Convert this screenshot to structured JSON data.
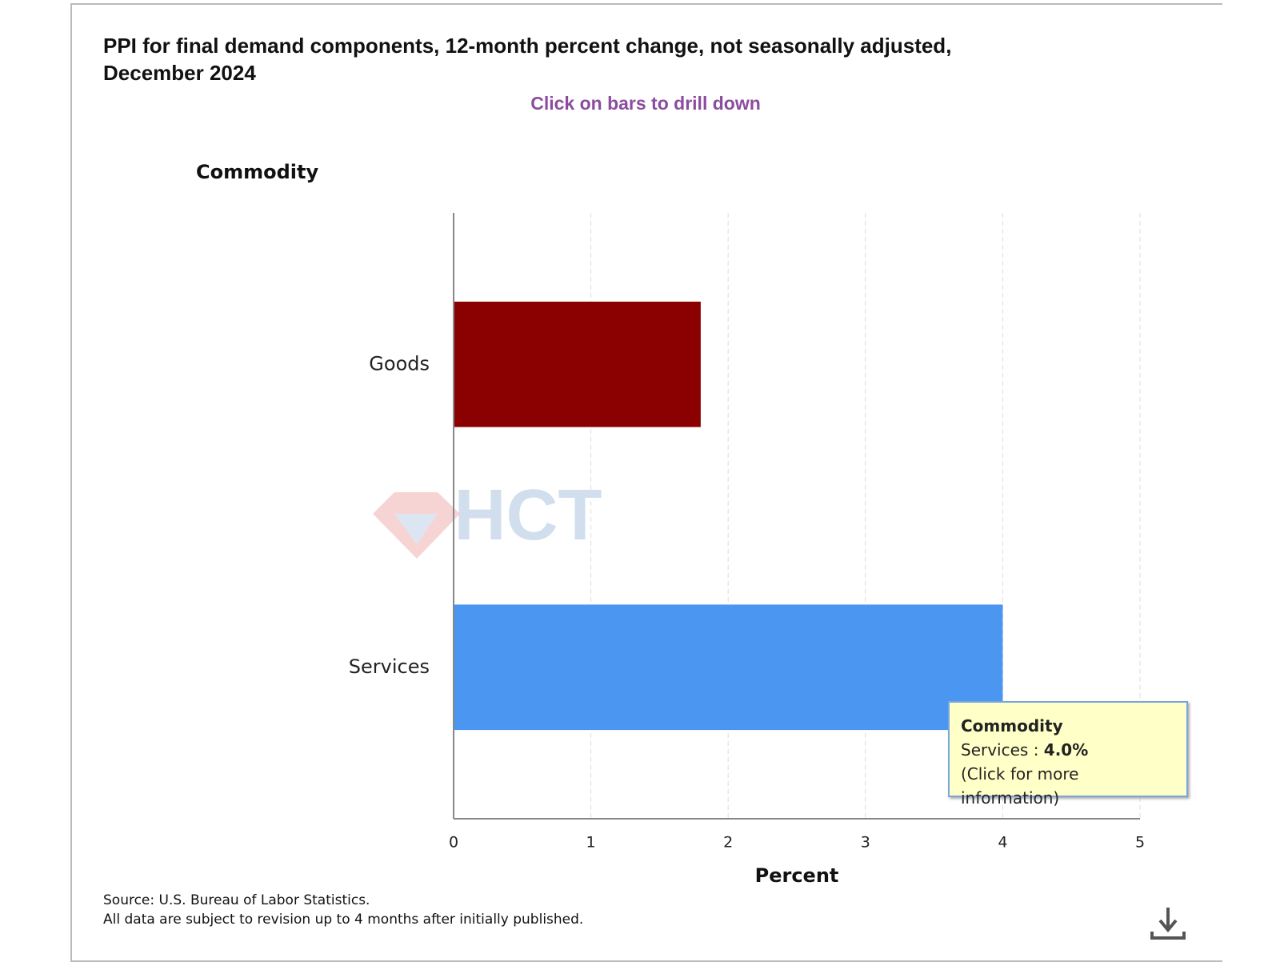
{
  "chart_data": {
    "type": "hbar",
    "title": "PPI for final demand components, 12-month percent change, not seasonally adjusted, December 2024",
    "subtitle": "Click on bars to drill down",
    "y_label": "Commodity",
    "x_label": "Percent",
    "categories": [
      "Goods",
      "Services"
    ],
    "values": [
      1.8,
      4.0
    ],
    "colors": [
      "#8b0000",
      "#4a96f0"
    ],
    "xlim": [
      0,
      5
    ],
    "xticks": [
      0,
      1,
      2,
      3,
      4,
      5
    ],
    "grid": true,
    "source": [
      "Source: U.S. Bureau of Labor Statistics.",
      "All data are subject to revision up to 4 months after initially published."
    ],
    "tooltip": {
      "title": "Commodity",
      "label": "Services :",
      "value": "4.0%",
      "note": "(Click for more information)"
    },
    "watermark": "HCT"
  }
}
